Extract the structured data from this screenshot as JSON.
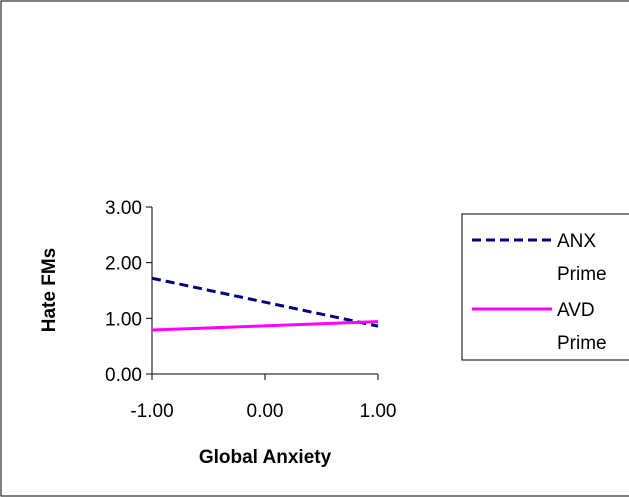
{
  "chart_data": {
    "type": "line",
    "title": "",
    "xlabel": "Global Anxiety",
    "ylabel": "Hate FMs",
    "xlim": [
      -1,
      1
    ],
    "ylim": [
      0,
      3
    ],
    "x_ticks": [
      "-1.00",
      "0.00",
      "1.00"
    ],
    "y_ticks": [
      "0.00",
      "1.00",
      "2.00",
      "3.00"
    ],
    "grid": false,
    "legend_position": "right",
    "series": [
      {
        "name": "ANX Prime",
        "name_lines": [
          "ANX",
          "Prime"
        ],
        "color": "#000080",
        "dash": "dashed",
        "x": [
          -1,
          1
        ],
        "values": [
          1.72,
          0.86
        ]
      },
      {
        "name": "AVD Prime",
        "name_lines": [
          "AVD",
          "Prime"
        ],
        "color": "#ff00ff",
        "dash": "solid",
        "x": [
          -1,
          1
        ],
        "values": [
          0.79,
          0.94
        ]
      }
    ]
  }
}
